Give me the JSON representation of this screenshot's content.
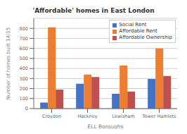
{
  "chart_data": {
    "type": "bar",
    "title": "'Affordable' homes in East London",
    "xlabel": "ELL Boroughs",
    "ylabel": "Number of homes built 14/15",
    "categories": [
      "Croydon",
      "Hackney",
      "Lewisham",
      "Tower Hamlets"
    ],
    "series": [
      {
        "name": "Social Rent",
        "color": "#4472c4",
        "values": [
          60,
          248,
          148,
          295
        ]
      },
      {
        "name": "Affordable Rent",
        "color": "#ed7d31",
        "values": [
          810,
          340,
          430,
          600
        ]
      },
      {
        "name": "Affordable Ownership",
        "color": "#c0504d",
        "values": [
          190,
          315,
          170,
          325
        ]
      }
    ],
    "ylim": [
      0,
      900
    ],
    "yticks": [
      0,
      100,
      200,
      300,
      400,
      500,
      600,
      700,
      800
    ],
    "grid": true,
    "legend": "upper right"
  }
}
